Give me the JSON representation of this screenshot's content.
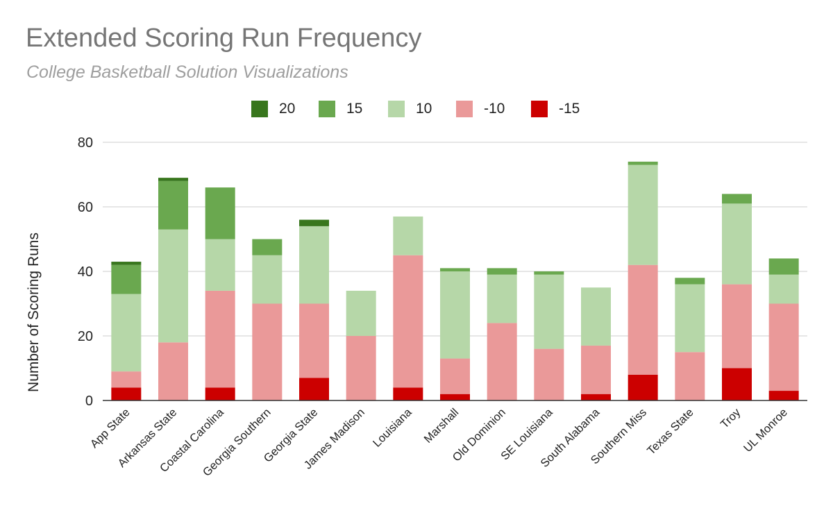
{
  "chart_data": {
    "type": "bar",
    "stacked": true,
    "title": "Extended Scoring Run Frequency",
    "subtitle": "College Basketball Solution Visualizations",
    "xlabel": "",
    "ylabel": "Number of Scoring Runs",
    "ylim": [
      0,
      80
    ],
    "yticks": [
      0,
      20,
      40,
      60,
      80
    ],
    "grid": true,
    "legend_position": "top",
    "categories": [
      "App State",
      "Arkansas State",
      "Coastal Carolina",
      "Georgia Southern",
      "Georgia State",
      "James Madison",
      "Louisiana",
      "Marshall",
      "Old Dominion",
      "SE Louisiana",
      "South Alabama",
      "Southern Miss",
      "Texas State",
      "Troy",
      "UL Monroe"
    ],
    "series": [
      {
        "name": "20",
        "color": "#38761d",
        "values": [
          1,
          1,
          0,
          0,
          2,
          0,
          0,
          0,
          0,
          0,
          0,
          0,
          0,
          0,
          0
        ]
      },
      {
        "name": "15",
        "color": "#6aa84f",
        "values": [
          9,
          15,
          16,
          5,
          0,
          0,
          0,
          1,
          2,
          1,
          0,
          1,
          2,
          3,
          5
        ]
      },
      {
        "name": "10",
        "color": "#b6d7a8",
        "values": [
          24,
          35,
          16,
          15,
          24,
          14,
          12,
          27,
          15,
          23,
          18,
          31,
          21,
          25,
          9
        ]
      },
      {
        "name": "-10",
        "color": "#ea9999",
        "values": [
          5,
          18,
          30,
          30,
          23,
          20,
          41,
          11,
          24,
          16,
          15,
          34,
          15,
          26,
          27
        ]
      },
      {
        "name": "-15",
        "color": "#cc0000",
        "values": [
          4,
          0,
          4,
          0,
          7,
          0,
          4,
          2,
          0,
          0,
          2,
          8,
          0,
          10,
          3
        ]
      }
    ]
  }
}
